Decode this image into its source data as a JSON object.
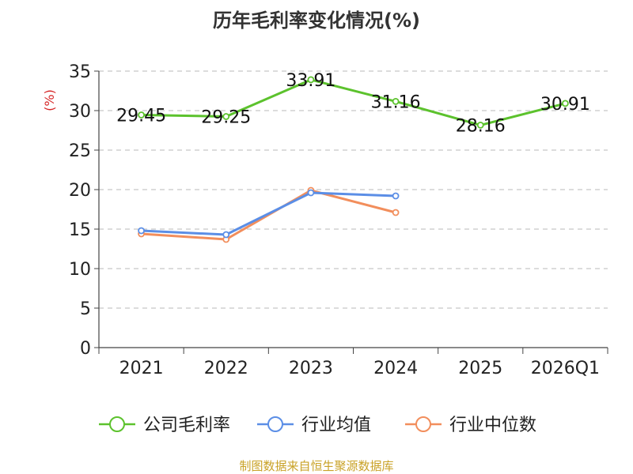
{
  "title": "历年毛利率变化情况(%)",
  "unit": "(%)",
  "source": "制图数据来自恒生聚源数据库",
  "chart_data": {
    "type": "line",
    "title": "历年毛利率变化情况(%)",
    "ylabel": "(%)",
    "categories": [
      "2021",
      "2022",
      "2023",
      "2024",
      "2025",
      "2026Q1"
    ],
    "ylim": [
      0,
      35
    ],
    "yticks": [
      0,
      5,
      10,
      15,
      20,
      25,
      30,
      35
    ],
    "grid": true,
    "legend_position": "bottom",
    "series": [
      {
        "name": "公司毛利率",
        "color": "#5cc22d",
        "values": [
          29.45,
          29.25,
          33.91,
          31.16,
          28.16,
          30.91
        ],
        "labels": [
          "29.45",
          "29.25",
          "33.91",
          "31.16",
          "28.16",
          "30.91"
        ]
      },
      {
        "name": "行业均值",
        "color": "#5b8ee6",
        "values": [
          14.8,
          14.3,
          19.6,
          19.2,
          null,
          null
        ]
      },
      {
        "name": "行业中位数",
        "color": "#f28e5c",
        "values": [
          14.4,
          13.7,
          19.9,
          17.1,
          null,
          null
        ]
      }
    ]
  }
}
